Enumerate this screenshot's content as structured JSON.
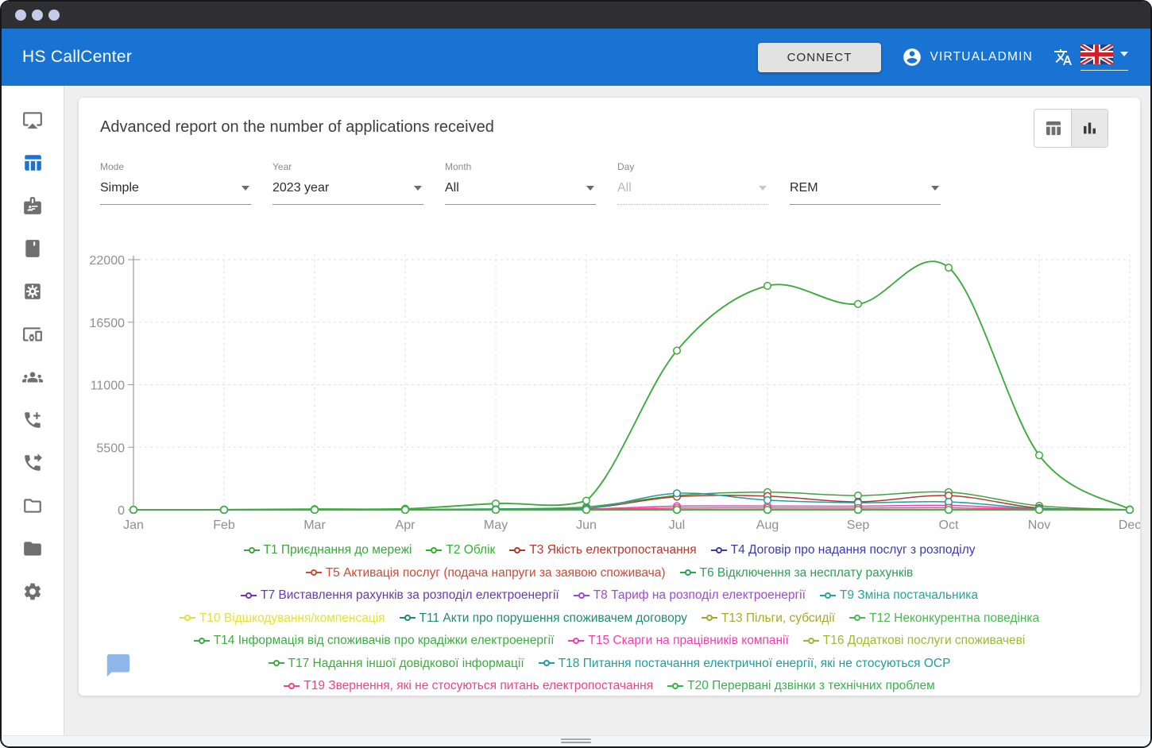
{
  "header": {
    "app_title": "HS CallCenter",
    "connect_button": "CONNECT",
    "username": "VIRTUALADMIN",
    "language_flag": "united-kingdom"
  },
  "sidebar": {
    "items": [
      {
        "icon": "airplay",
        "active": false
      },
      {
        "icon": "table-chart",
        "active": true
      },
      {
        "icon": "badge",
        "active": false
      },
      {
        "icon": "book",
        "active": false
      },
      {
        "icon": "settings-applications",
        "active": false
      },
      {
        "icon": "devices-other",
        "active": false
      },
      {
        "icon": "groups",
        "active": false
      },
      {
        "icon": "add-call",
        "active": false
      },
      {
        "icon": "phone-forwarded",
        "active": false
      },
      {
        "icon": "folder-outline",
        "active": false
      },
      {
        "icon": "folder",
        "active": false
      },
      {
        "icon": "settings",
        "active": false
      }
    ]
  },
  "report": {
    "title": "Advanced report on the number of applications received",
    "view_toggle": {
      "options": [
        "table-view",
        "chart-view"
      ],
      "selected": "chart-view"
    },
    "filters": [
      {
        "label": "Mode",
        "value": "Simple",
        "disabled": false
      },
      {
        "label": "Year",
        "value": "2023 year",
        "disabled": false
      },
      {
        "label": "Month",
        "value": "All",
        "disabled": false
      },
      {
        "label": "Day",
        "value": "All",
        "disabled": true
      },
      {
        "label": "",
        "value": "REM",
        "disabled": false
      }
    ]
  },
  "colors": {
    "appbar": "#1973d2",
    "chat_bubble": "#8db6ea"
  },
  "chart_data": {
    "type": "line",
    "title": "",
    "xlabel": "",
    "ylabel": "",
    "x_categories": [
      "Jan",
      "Feb",
      "Mar",
      "Apr",
      "May",
      "Jun",
      "Jul",
      "Aug",
      "Sep",
      "Oct",
      "Nov",
      "Dec"
    ],
    "y_ticks": [
      0,
      5500,
      11000,
      16500,
      22000
    ],
    "ylim": [
      0,
      22000
    ],
    "grid": true,
    "legend_position": "bottom",
    "legend_rows": [
      [
        0,
        1,
        2,
        3
      ],
      [
        4,
        5
      ],
      [
        6,
        7,
        8
      ],
      [
        9,
        10,
        12,
        11
      ],
      [
        13,
        14,
        15
      ],
      [
        16,
        17
      ],
      [
        18,
        19
      ]
    ],
    "series": [
      {
        "name": "T1 Приєднання до мережі",
        "color": "#3fa33f",
        "values": [
          0,
          0,
          10,
          30,
          80,
          250,
          1250,
          1550,
          1250,
          1550,
          350,
          10
        ]
      },
      {
        "name": "T2 Облік",
        "color": "#2db52d",
        "values": [
          0,
          0,
          0,
          0,
          0,
          0,
          0,
          0,
          0,
          0,
          0,
          0
        ]
      },
      {
        "name": "T3 Якість електропостачання",
        "color": "#b03a2e",
        "values": [
          0,
          0,
          5,
          15,
          40,
          120,
          1150,
          1200,
          700,
          1250,
          150,
          5
        ]
      },
      {
        "name": "T4 Договір про надання послуг з розподілу",
        "color": "#3b3bb0",
        "values": [
          0,
          0,
          0,
          0,
          0,
          0,
          0,
          0,
          0,
          0,
          0,
          0
        ]
      },
      {
        "name": "T5 Активація послуг (подача напруги за заявою споживача)",
        "color": "#cd4a36",
        "values": [
          0,
          0,
          0,
          0,
          0,
          0,
          0,
          0,
          0,
          0,
          0,
          0
        ]
      },
      {
        "name": "T6 Відключення за несплату рахунків",
        "color": "#2aa351",
        "values": [
          0,
          0,
          0,
          0,
          0,
          0,
          0,
          0,
          0,
          0,
          0,
          0
        ]
      },
      {
        "name": "T7 Виставлення рахунків за розподіл електроенергії",
        "color": "#6b37b2",
        "values": [
          0,
          0,
          0,
          0,
          0,
          0,
          0,
          0,
          0,
          0,
          0,
          0
        ]
      },
      {
        "name": "T8 Тариф на розподіл електроенергії",
        "color": "#9d49d3",
        "values": [
          0,
          0,
          0,
          0,
          0,
          0,
          0,
          0,
          0,
          0,
          0,
          0
        ]
      },
      {
        "name": "T9 Зміна постачальника",
        "color": "#27a39e",
        "values": [
          0,
          0,
          0,
          0,
          0,
          0,
          0,
          0,
          0,
          0,
          0,
          0
        ]
      },
      {
        "name": "T10 Відшкодування/компенсація",
        "color": "#e2e236",
        "values": [
          0,
          0,
          0,
          0,
          0,
          0,
          0,
          0,
          0,
          0,
          0,
          0
        ]
      },
      {
        "name": "T11 Акти про порушення споживачем договору",
        "color": "#218c68",
        "values": [
          0,
          0,
          0,
          0,
          0,
          0,
          0,
          0,
          0,
          0,
          0,
          0
        ]
      },
      {
        "name": "T12 Неконкурентна поведінка",
        "color": "#49b84e",
        "values": [
          0,
          0,
          0,
          0,
          0,
          0,
          0,
          0,
          0,
          0,
          0,
          0
        ]
      },
      {
        "name": "T13 Пільги, субсидії",
        "color": "#a9a72a",
        "values": [
          0,
          0,
          0,
          0,
          0,
          0,
          0,
          0,
          0,
          0,
          0,
          0
        ]
      },
      {
        "name": "T14 Інформація від споживачів про крадіжки електроенергії",
        "color": "#3bad42",
        "values": [
          0,
          0,
          0,
          0,
          0,
          0,
          0,
          0,
          0,
          0,
          0,
          0
        ]
      },
      {
        "name": "T15 Скарги на працівників компанії",
        "color": "#ee41ad",
        "values": [
          0,
          0,
          0,
          5,
          20,
          60,
          320,
          330,
          320,
          380,
          60,
          0
        ]
      },
      {
        "name": "T16 Додаткові послуги споживачеві",
        "color": "#9aba30",
        "values": [
          0,
          0,
          0,
          0,
          0,
          0,
          0,
          0,
          0,
          0,
          0,
          0
        ]
      },
      {
        "name": "T17 Надання іншої довідкової інформації",
        "color": "#3dab3d",
        "values": [
          0,
          10,
          60,
          90,
          550,
          800,
          14000,
          19700,
          18100,
          21300,
          4800,
          30
        ]
      },
      {
        "name": "T18 Питання постачання електричної енергії, які не стосуються ОСР",
        "color": "#1f9d9d",
        "values": [
          0,
          0,
          5,
          10,
          50,
          100,
          1450,
          850,
          620,
          700,
          100,
          5
        ]
      },
      {
        "name": "T19 Звернення, які не стосуються питань електропостачання",
        "color": "#ef4387",
        "values": [
          0,
          0,
          0,
          0,
          10,
          30,
          150,
          160,
          150,
          170,
          30,
          0
        ]
      },
      {
        "name": "T20 Перервані дзвінки з технічних проблем",
        "color": "#36b24a",
        "values": [
          0,
          0,
          0,
          0,
          0,
          0,
          0,
          0,
          0,
          0,
          0,
          0
        ]
      }
    ]
  }
}
